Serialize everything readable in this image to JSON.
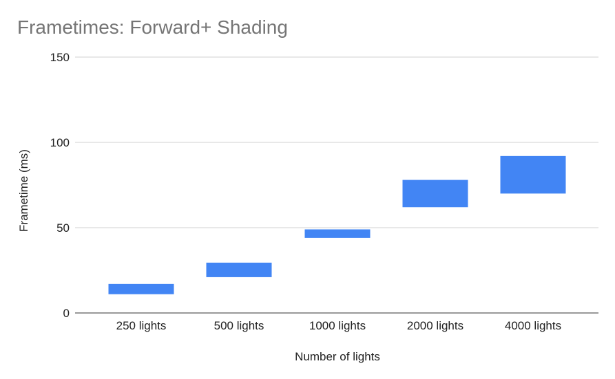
{
  "chart_data": {
    "type": "bar",
    "title": "Frametimes: Forward+ Shading",
    "xlabel": "Number of lights",
    "ylabel": "Frametime (ms)",
    "ylim": [
      0,
      150
    ],
    "yticks": [
      0,
      50,
      100,
      150
    ],
    "grid": true,
    "legend": "none",
    "categories": [
      "250 lights",
      "500 lights",
      "1000 lights",
      "2000 lights",
      "4000 lights"
    ],
    "series": [
      {
        "low": [
          11,
          21,
          44,
          62,
          70
        ],
        "high": [
          17,
          29.5,
          49,
          78,
          92
        ],
        "color": "#4285f4"
      }
    ]
  }
}
